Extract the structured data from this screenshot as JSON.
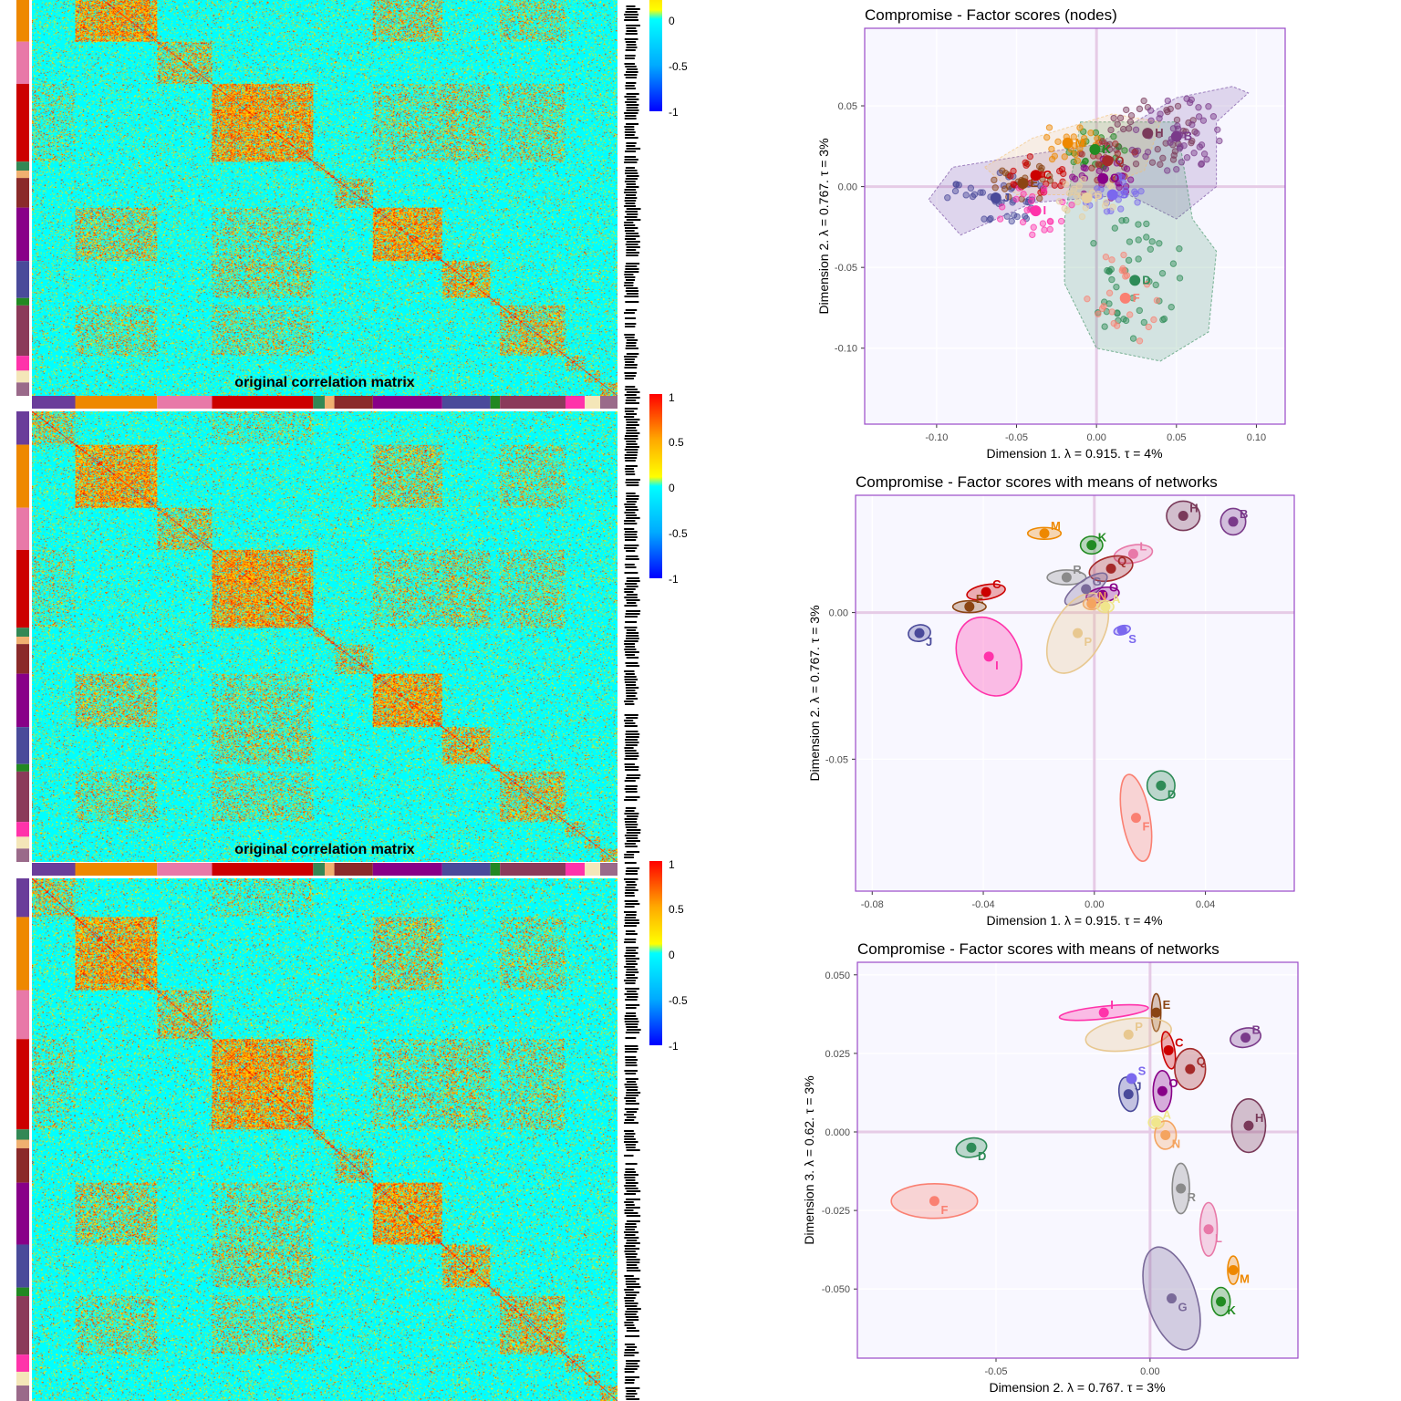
{
  "heatmaps": {
    "title": "original correlation matrix",
    "colorbar_ticks": [
      "1",
      "0.5",
      "0",
      "-0.5",
      "-1"
    ],
    "colorbar_colors": [
      "#0000ff",
      "#00aaff",
      "#00ffff",
      "#ffff00",
      "#ffaa00",
      "#ff0000"
    ],
    "network_colors": [
      "#6a3d9a",
      "#ee8800",
      "#e879a8",
      "#cc0000",
      "#338855",
      "#f0b070",
      "#8b2a2a",
      "#880088",
      "#4a4a9a",
      "#228822",
      "#8b3a5a",
      "#ff33aa",
      "#f4e6b8",
      "#9a6a8a"
    ],
    "block_sizes": [
      45,
      85,
      57,
      105,
      12,
      10,
      40,
      72,
      50,
      10,
      68,
      20,
      16,
      18
    ]
  },
  "chart_data": [
    {
      "type": "scatter",
      "title": "Compromise - Factor scores (nodes)",
      "xlabel": "Dimension 1.   λ = 0.915.  τ = 4%",
      "ylabel": "Dimension 2.   λ = 0.767.  τ = 3%",
      "xlim": [
        -0.145,
        0.118
      ],
      "ylim": [
        -0.147,
        0.098
      ],
      "xticks": [
        -0.1,
        -0.05,
        0.0,
        0.05,
        0.1
      ],
      "xtick_labels": [
        "-0.10",
        "-0.05",
        "0.00",
        "0.05",
        "0.10"
      ],
      "yticks": [
        0.05,
        0.0,
        -0.05,
        -0.1
      ],
      "ytick_labels": [
        "0.05",
        "0.00",
        "-0.05",
        "-0.10"
      ],
      "networks": [
        {
          "label": "D",
          "color": "#2e8b57",
          "x": 0.024,
          "y": -0.058
        },
        {
          "label": "F",
          "color": "#fa8072",
          "x": 0.018,
          "y": -0.069
        },
        {
          "label": "J",
          "color": "#4a4a9a",
          "x": -0.063,
          "y": -0.007
        },
        {
          "label": "E",
          "color": "#8b4513",
          "x": -0.046,
          "y": 0.002
        },
        {
          "label": "C",
          "color": "#cc0000",
          "x": -0.038,
          "y": 0.007
        },
        {
          "label": "I",
          "color": "#ff33aa",
          "x": -0.038,
          "y": -0.015
        },
        {
          "label": "H",
          "color": "#7a3a5a",
          "x": 0.032,
          "y": 0.033
        },
        {
          "label": "B",
          "color": "#7a3a8a",
          "x": 0.05,
          "y": 0.031
        },
        {
          "label": "K",
          "color": "#228b22",
          "x": -0.001,
          "y": 0.023
        },
        {
          "label": "Q",
          "color": "#a52a2a",
          "x": 0.007,
          "y": 0.016
        },
        {
          "label": "O",
          "color": "#880088",
          "x": 0.004,
          "y": 0.005
        },
        {
          "label": "S",
          "color": "#7b68ee",
          "x": 0.01,
          "y": -0.005
        },
        {
          "label": "M",
          "color": "#ee8800",
          "x": -0.018,
          "y": 0.027
        },
        {
          "label": "P",
          "color": "#e8d0a0",
          "x": -0.006,
          "y": -0.007
        }
      ],
      "hulls": [
        {
          "color": "#6a3d9a",
          "points": [
            [
              -0.105,
              -0.008
            ],
            [
              -0.09,
              0.012
            ],
            [
              -0.04,
              0.02
            ],
            [
              0.0,
              0.026
            ],
            [
              0.05,
              0.055
            ],
            [
              0.085,
              0.062
            ],
            [
              0.095,
              0.058
            ],
            [
              0.075,
              0.04
            ],
            [
              0.075,
              0.0
            ],
            [
              0.05,
              -0.02
            ],
            [
              0.02,
              -0.005
            ],
            [
              -0.04,
              -0.01
            ],
            [
              -0.085,
              -0.03
            ]
          ]
        },
        {
          "color": "#2e8b57",
          "points": [
            [
              -0.01,
              0.04
            ],
            [
              0.05,
              0.04
            ],
            [
              0.06,
              -0.02
            ],
            [
              0.075,
              -0.04
            ],
            [
              0.07,
              -0.09
            ],
            [
              0.04,
              -0.108
            ],
            [
              0.0,
              -0.1
            ],
            [
              -0.02,
              -0.06
            ],
            [
              -0.02,
              -0.02
            ]
          ]
        },
        {
          "color": "#f4c070",
          "points": [
            [
              -0.07,
              0.012
            ],
            [
              -0.04,
              0.03
            ],
            [
              0.01,
              0.045
            ],
            [
              0.04,
              0.04
            ],
            [
              0.03,
              0.01
            ],
            [
              -0.01,
              -0.005
            ],
            [
              -0.05,
              -0.005
            ]
          ]
        }
      ],
      "node_colors": [
        "#6a3d9a",
        "#2e8b57",
        "#ee8800",
        "#cc0000",
        "#e879a8",
        "#8b4513",
        "#880088",
        "#f0c080"
      ]
    },
    {
      "type": "scatter",
      "title": "Compromise - Factor scores with means of networks",
      "xlabel": "Dimension 1.   λ = 0.915.  τ = 4%",
      "ylabel": "Dimension 2.   λ = 0.767.  τ = 3%",
      "xlim": [
        -0.086,
        0.072
      ],
      "ylim": [
        -0.095,
        0.04
      ],
      "xticks": [
        -0.08,
        -0.04,
        0.0,
        0.04
      ],
      "xtick_labels": [
        "-0.08",
        "-0.04",
        "0.00",
        "0.04"
      ],
      "yticks": [
        0.0,
        -0.05
      ],
      "ytick_labels": [
        "0.00",
        "-0.05"
      ],
      "networks": [
        {
          "label": "H",
          "color": "#7a3a5a",
          "x": 0.032,
          "y": 0.033,
          "rx": 0.006,
          "ry": 0.005,
          "angle": 0
        },
        {
          "label": "B",
          "color": "#7a3a8a",
          "x": 0.05,
          "y": 0.031,
          "rx": 0.0045,
          "ry": 0.0045,
          "angle": 0
        },
        {
          "label": "M",
          "color": "#ee8800",
          "x": -0.018,
          "y": 0.027,
          "rx": 0.006,
          "ry": 0.002,
          "angle": 0
        },
        {
          "label": "K",
          "color": "#228b22",
          "x": -0.001,
          "y": 0.023,
          "rx": 0.004,
          "ry": 0.003,
          "angle": 0
        },
        {
          "label": "L",
          "color": "#e879a8",
          "x": 0.014,
          "y": 0.02,
          "rx": 0.007,
          "ry": 0.003,
          "angle": -10
        },
        {
          "label": "Q",
          "color": "#a52a2a",
          "x": 0.006,
          "y": 0.015,
          "rx": 0.008,
          "ry": 0.004,
          "angle": -15
        },
        {
          "label": "R",
          "color": "#8a8a8a",
          "x": -0.01,
          "y": 0.012,
          "rx": 0.007,
          "ry": 0.0025,
          "angle": 0
        },
        {
          "label": "G",
          "color": "#7a6a9a",
          "x": -0.003,
          "y": 0.008,
          "rx": 0.009,
          "ry": 0.003,
          "angle": -35
        },
        {
          "label": "O",
          "color": "#880088",
          "x": 0.003,
          "y": 0.006,
          "rx": 0.006,
          "ry": 0.0025,
          "angle": -10
        },
        {
          "label": "C",
          "color": "#cc0000",
          "x": -0.039,
          "y": 0.007,
          "rx": 0.007,
          "ry": 0.0025,
          "angle": -10
        },
        {
          "label": "E",
          "color": "#8b4513",
          "x": -0.045,
          "y": 0.002,
          "rx": 0.006,
          "ry": 0.002,
          "angle": 0
        },
        {
          "label": "N",
          "color": "#f4a460",
          "x": -0.001,
          "y": 0.003,
          "rx": 0.003,
          "ry": 0.002,
          "angle": 0
        },
        {
          "label": "A",
          "color": "#f0e68c",
          "x": 0.004,
          "y": 0.002,
          "rx": 0.003,
          "ry": 0.002,
          "angle": 0
        },
        {
          "label": "S",
          "color": "#7b68ee",
          "x": 0.01,
          "y": -0.006,
          "rx": 0.003,
          "ry": 0.0015,
          "angle": -15
        },
        {
          "label": "J",
          "color": "#4a4a9a",
          "x": -0.063,
          "y": -0.007,
          "rx": 0.004,
          "ry": 0.0028,
          "angle": -10
        },
        {
          "label": "P",
          "color": "#e8c890",
          "x": -0.006,
          "y": -0.007,
          "rx": 0.009,
          "ry": 0.015,
          "angle": 30
        },
        {
          "label": "I",
          "color": "#ff33aa",
          "x": -0.038,
          "y": -0.015,
          "rx": 0.011,
          "ry": 0.014,
          "angle": -25
        },
        {
          "label": "D",
          "color": "#2e8b57",
          "x": 0.024,
          "y": -0.059,
          "rx": 0.005,
          "ry": 0.005,
          "angle": 0
        },
        {
          "label": "F",
          "color": "#fa8072",
          "x": 0.015,
          "y": -0.07,
          "rx": 0.005,
          "ry": 0.015,
          "angle": -10
        }
      ]
    },
    {
      "type": "scatter",
      "title": "Compromise - Factor scores with means of networks",
      "xlabel": "Dimension 2.   λ = 0.767.  τ = 3%",
      "ylabel": "Dimension 3.   λ = 0.62.  τ = 3%",
      "xlim": [
        -0.095,
        0.048
      ],
      "ylim": [
        -0.072,
        0.054
      ],
      "xticks": [
        -0.05,
        0.0
      ],
      "xtick_labels": [
        "-0.05",
        "0.00"
      ],
      "yticks": [
        0.05,
        0.025,
        0.0,
        -0.025,
        -0.05
      ],
      "ytick_labels": [
        "0.050",
        "0.025",
        "0.000",
        "-0.025",
        "-0.050"
      ],
      "networks": [
        {
          "label": "I",
          "color": "#ff33aa",
          "x": -0.015,
          "y": 0.038,
          "rx": 0.0145,
          "ry": 0.002,
          "angle": -6
        },
        {
          "label": "E",
          "color": "#8b4513",
          "x": 0.002,
          "y": 0.038,
          "rx": 0.0015,
          "ry": 0.006,
          "angle": 0
        },
        {
          "label": "P",
          "color": "#e8c890",
          "x": -0.007,
          "y": 0.031,
          "rx": 0.014,
          "ry": 0.005,
          "angle": -8
        },
        {
          "label": "B",
          "color": "#7a3a8a",
          "x": 0.031,
          "y": 0.03,
          "rx": 0.005,
          "ry": 0.003,
          "angle": -12
        },
        {
          "label": "C",
          "color": "#cc0000",
          "x": 0.006,
          "y": 0.026,
          "rx": 0.002,
          "ry": 0.006,
          "angle": -10
        },
        {
          "label": "Q",
          "color": "#a52a2a",
          "x": 0.013,
          "y": 0.02,
          "rx": 0.005,
          "ry": 0.0065,
          "angle": 0
        },
        {
          "label": "S",
          "color": "#7b68ee",
          "x": -0.006,
          "y": 0.017,
          "rx": 0.0015,
          "ry": 0.0015,
          "angle": 0
        },
        {
          "label": "J",
          "color": "#4a4a9a",
          "x": -0.007,
          "y": 0.012,
          "rx": 0.003,
          "ry": 0.0055,
          "angle": -10
        },
        {
          "label": "O",
          "color": "#880088",
          "x": 0.004,
          "y": 0.013,
          "rx": 0.003,
          "ry": 0.0065,
          "angle": 0
        },
        {
          "label": "H",
          "color": "#7a3a5a",
          "x": 0.032,
          "y": 0.002,
          "rx": 0.0055,
          "ry": 0.0085,
          "angle": 0
        },
        {
          "label": "A",
          "color": "#f0e68c",
          "x": 0.002,
          "y": 0.003,
          "rx": 0.0025,
          "ry": 0.002,
          "angle": 0
        },
        {
          "label": "N",
          "color": "#f4a460",
          "x": 0.005,
          "y": -0.001,
          "rx": 0.0035,
          "ry": 0.0045,
          "angle": 0
        },
        {
          "label": "D",
          "color": "#2e8b57",
          "x": -0.058,
          "y": -0.005,
          "rx": 0.005,
          "ry": 0.003,
          "angle": -10
        },
        {
          "label": "R",
          "color": "#8a8a8a",
          "x": 0.01,
          "y": -0.018,
          "rx": 0.0028,
          "ry": 0.008,
          "angle": 0
        },
        {
          "label": "F",
          "color": "#fa8072",
          "x": -0.07,
          "y": -0.022,
          "rx": 0.014,
          "ry": 0.0055,
          "angle": 0
        },
        {
          "label": "L",
          "color": "#e879a8",
          "x": 0.019,
          "y": -0.031,
          "rx": 0.0028,
          "ry": 0.0085,
          "angle": 0
        },
        {
          "label": "M",
          "color": "#ee8800",
          "x": 0.027,
          "y": -0.044,
          "rx": 0.0018,
          "ry": 0.0045,
          "angle": 0
        },
        {
          "label": "G",
          "color": "#7a6a9a",
          "x": 0.007,
          "y": -0.053,
          "rx": 0.008,
          "ry": 0.017,
          "angle": -18
        },
        {
          "label": "K",
          "color": "#228b22",
          "x": 0.023,
          "y": -0.054,
          "rx": 0.003,
          "ry": 0.0045,
          "angle": 0
        }
      ]
    }
  ]
}
